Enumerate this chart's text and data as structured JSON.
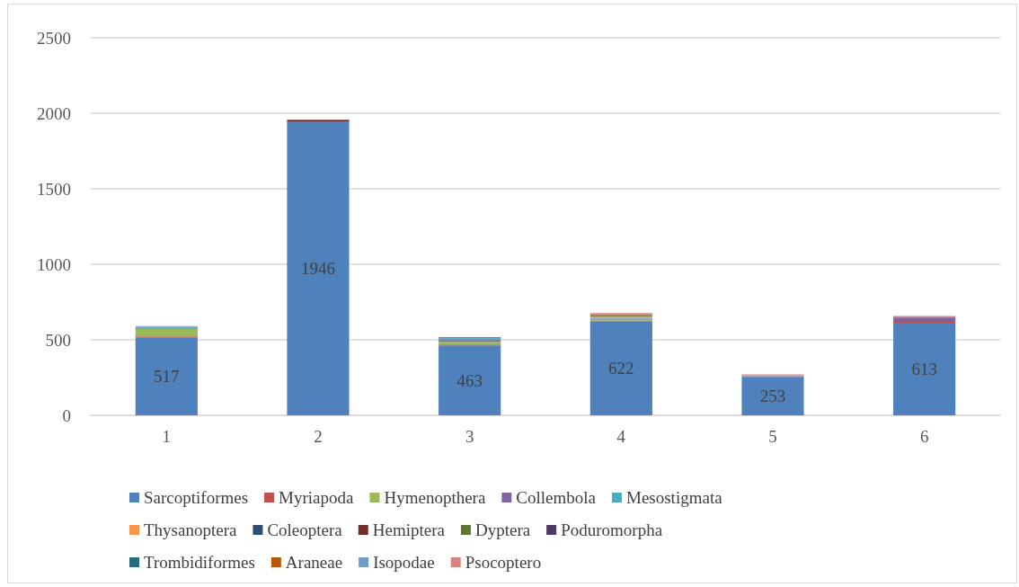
{
  "chart_data": {
    "type": "bar",
    "stacked": true,
    "categories": [
      "1",
      "2",
      "3",
      "4",
      "5",
      "6"
    ],
    "series": [
      {
        "name": "Sarcoptiformes",
        "color": "#4f81bd",
        "values": [
          517,
          1946,
          463,
          622,
          253,
          613
        ],
        "value_labels": [
          "517",
          "1946",
          "463",
          "622",
          "253",
          "613"
        ]
      },
      {
        "name": "Myriapoda",
        "color": "#c0504d",
        "values": [
          6,
          null,
          6,
          6,
          6,
          6
        ]
      },
      {
        "name": "Hymenopthera",
        "color": "#9bbb59",
        "values": [
          50,
          null,
          18,
          6,
          null,
          null
        ]
      },
      {
        "name": "Collembola",
        "color": "#8064a2",
        "values": [
          6,
          null,
          12,
          6,
          null,
          24
        ]
      },
      {
        "name": "Mesostigmata",
        "color": "#4bacc6",
        "values": [
          6,
          null,
          12,
          6,
          null,
          null
        ]
      },
      {
        "name": "Thysanoptera",
        "color": "#f79646",
        "values": [
          null,
          null,
          null,
          6,
          null,
          3
        ]
      },
      {
        "name": "Coleoptera",
        "color": "#2c4d75",
        "values": [
          null,
          null,
          null,
          null,
          null,
          null
        ]
      },
      {
        "name": "Hemiptera",
        "color": "#772c2a",
        "values": [
          null,
          11,
          null,
          null,
          null,
          null
        ]
      },
      {
        "name": "Dyptera",
        "color": "#5f7530",
        "values": [
          null,
          null,
          null,
          6,
          null,
          null
        ]
      },
      {
        "name": "Poduromorpha",
        "color": "#4d3b62",
        "values": [
          null,
          null,
          null,
          null,
          null,
          6
        ]
      },
      {
        "name": "Trombidiformes",
        "color": "#276a7c",
        "values": [
          null,
          null,
          6,
          6,
          null,
          null
        ]
      },
      {
        "name": "Araneae",
        "color": "#b65708",
        "values": [
          null,
          null,
          null,
          6,
          null,
          null
        ]
      },
      {
        "name": "Isopodae",
        "color": "#729aca",
        "values": [
          6,
          null,
          null,
          null,
          6,
          null
        ]
      },
      {
        "name": "Psocoptero",
        "color": "#d9827f",
        "values": [
          null,
          null,
          null,
          7,
          6,
          6
        ]
      }
    ],
    "ylim": [
      0,
      2500
    ],
    "yticks": [
      0,
      500,
      1000,
      1500,
      2000,
      2500
    ],
    "grid": "y",
    "legend": "bottom"
  }
}
